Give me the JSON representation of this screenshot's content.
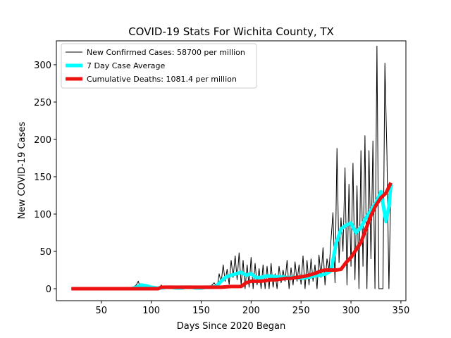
{
  "chart_data": {
    "type": "line",
    "title": "COVID-19 Stats For Wichita County, TX",
    "xlabel": "Days Since 2020 Began",
    "ylabel": "New COVID-19 Cases",
    "xlim": [
      5,
      355
    ],
    "ylim": [
      -16,
      332
    ],
    "xticks": [
      50,
      100,
      150,
      200,
      250,
      300,
      350
    ],
    "yticks": [
      0,
      50,
      100,
      150,
      200,
      250,
      300
    ],
    "grid": false,
    "legend_position": "top-left",
    "series": [
      {
        "name": "New Confirmed Cases: 58700 per million",
        "color": "#000000",
        "x": [
          20,
          40,
          60,
          80,
          85,
          87,
          89,
          91,
          93,
          95,
          100,
          105,
          108,
          110,
          112,
          115,
          118,
          120,
          125,
          130,
          135,
          140,
          145,
          150,
          155,
          160,
          163,
          166,
          168,
          170,
          172,
          174,
          176,
          178,
          180,
          182,
          184,
          186,
          188,
          190,
          192,
          194,
          196,
          198,
          200,
          202,
          204,
          206,
          208,
          210,
          212,
          214,
          216,
          218,
          220,
          222,
          224,
          226,
          228,
          230,
          232,
          234,
          236,
          238,
          240,
          242,
          244,
          246,
          248,
          250,
          252,
          254,
          256,
          258,
          260,
          262,
          264,
          266,
          268,
          270,
          272,
          274,
          276,
          278,
          280,
          282,
          284,
          286,
          288,
          290,
          292,
          294,
          296,
          298,
          300,
          302,
          304,
          306,
          308,
          310,
          312,
          314,
          316,
          318,
          320,
          322,
          324,
          326,
          328,
          330,
          332,
          334,
          336,
          338,
          340
        ],
        "values": [
          0,
          0,
          0,
          0,
          5,
          10,
          2,
          6,
          4,
          3,
          2,
          0,
          1,
          5,
          0,
          3,
          1,
          0,
          2,
          4,
          1,
          3,
          0,
          2,
          0,
          4,
          8,
          2,
          20,
          8,
          32,
          10,
          26,
          6,
          38,
          15,
          44,
          12,
          48,
          5,
          38,
          0,
          32,
          2,
          42,
          0,
          34,
          5,
          27,
          0,
          32,
          0,
          30,
          0,
          34,
          2,
          20,
          0,
          30,
          8,
          25,
          10,
          38,
          0,
          28,
          5,
          36,
          10,
          32,
          6,
          44,
          0,
          38,
          5,
          40,
          10,
          32,
          0,
          45,
          15,
          55,
          5,
          40,
          25,
          65,
          102,
          8,
          188,
          35,
          95,
          50,
          162,
          5,
          140,
          30,
          168,
          12,
          138,
          0,
          185,
          30,
          205,
          0,
          185,
          40,
          198,
          0,
          325,
          0,
          0,
          0,
          302,
          180,
          0,
          140
        ],
        "line_width": 1
      },
      {
        "name": "7 Day Case Average",
        "color": "#00ffff",
        "x": [
          20,
          40,
          60,
          80,
          85,
          90,
          95,
          100,
          105,
          110,
          115,
          120,
          125,
          130,
          135,
          140,
          145,
          150,
          155,
          160,
          165,
          170,
          175,
          180,
          185,
          190,
          195,
          200,
          205,
          210,
          215,
          220,
          225,
          230,
          235,
          240,
          245,
          250,
          255,
          260,
          265,
          270,
          275,
          280,
          285,
          290,
          295,
          300,
          305,
          310,
          315,
          320,
          325,
          330,
          335,
          338,
          340
        ],
        "values": [
          0,
          0,
          0,
          0,
          2,
          5,
          4,
          2,
          1,
          1,
          2,
          2,
          1,
          1,
          2,
          2,
          1,
          1,
          2,
          2,
          3,
          10,
          16,
          18,
          20,
          22,
          18,
          20,
          15,
          15,
          17,
          17,
          16,
          16,
          15,
          15,
          15,
          14,
          15,
          16,
          18,
          18,
          20,
          24,
          60,
          80,
          85,
          88,
          75,
          82,
          95,
          105,
          115,
          130,
          90,
          110,
          140
        ],
        "line_width": 5
      },
      {
        "name": "Cumulative Deaths: 1081.4 per million",
        "color": "#ee1111",
        "x": [
          20,
          40,
          60,
          80,
          100,
          107,
          110,
          130,
          150,
          170,
          180,
          190,
          195,
          200,
          205,
          210,
          215,
          220,
          225,
          230,
          235,
          240,
          245,
          250,
          255,
          260,
          265,
          270,
          275,
          280,
          285,
          290,
          295,
          300,
          305,
          310,
          315,
          320,
          325,
          330,
          335,
          340
        ],
        "values": [
          0,
          0,
          0,
          0,
          0,
          0,
          2,
          2,
          2,
          2,
          3,
          3,
          8,
          10,
          10,
          10,
          11,
          12,
          12,
          13,
          14,
          14,
          15,
          16,
          17,
          19,
          21,
          24,
          25,
          25,
          25,
          26,
          35,
          42,
          52,
          62,
          80,
          98,
          112,
          122,
          128,
          142
        ],
        "line_width": 5
      }
    ]
  }
}
